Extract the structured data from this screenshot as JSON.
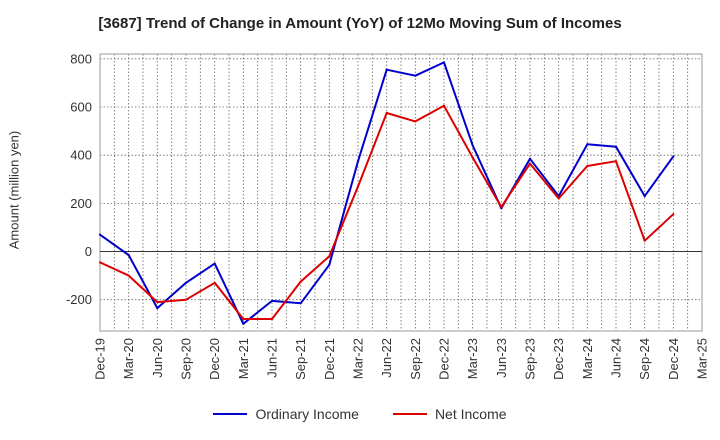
{
  "chart_data": {
    "type": "line",
    "title": "[3687]  Trend of Change in Amount (YoY) of 12Mo Moving Sum of Incomes",
    "xlabel": "",
    "ylabel": "Amount (million yen)",
    "ylim": [
      -330,
      820
    ],
    "yticks": [
      -200,
      0,
      200,
      400,
      600,
      800
    ],
    "grid": true,
    "legend_position": "bottom",
    "x": [
      "Dec-19",
      "Mar-20",
      "Jun-20",
      "Sep-20",
      "Dec-20",
      "Mar-21",
      "Jun-21",
      "Sep-21",
      "Dec-21",
      "Mar-22",
      "Jun-22",
      "Sep-22",
      "Dec-22",
      "Mar-23",
      "Jun-23",
      "Sep-23",
      "Dec-23",
      "Mar-24",
      "Jun-24",
      "Sep-24",
      "Dec-24",
      "Mar-25"
    ],
    "series": [
      {
        "name": "Ordinary Income",
        "color": "#0000cc",
        "values": [
          70,
          -15,
          -235,
          -130,
          -50,
          -300,
          -205,
          -215,
          -55,
          375,
          755,
          730,
          785,
          440,
          180,
          385,
          230,
          445,
          435,
          230,
          395,
          null
        ]
      },
      {
        "name": "Net Income",
        "color": "#dd0000",
        "values": [
          -45,
          -100,
          -210,
          -200,
          -130,
          -280,
          -280,
          -125,
          -20,
          270,
          575,
          540,
          605,
          390,
          185,
          365,
          220,
          355,
          375,
          45,
          155,
          null
        ]
      }
    ]
  }
}
